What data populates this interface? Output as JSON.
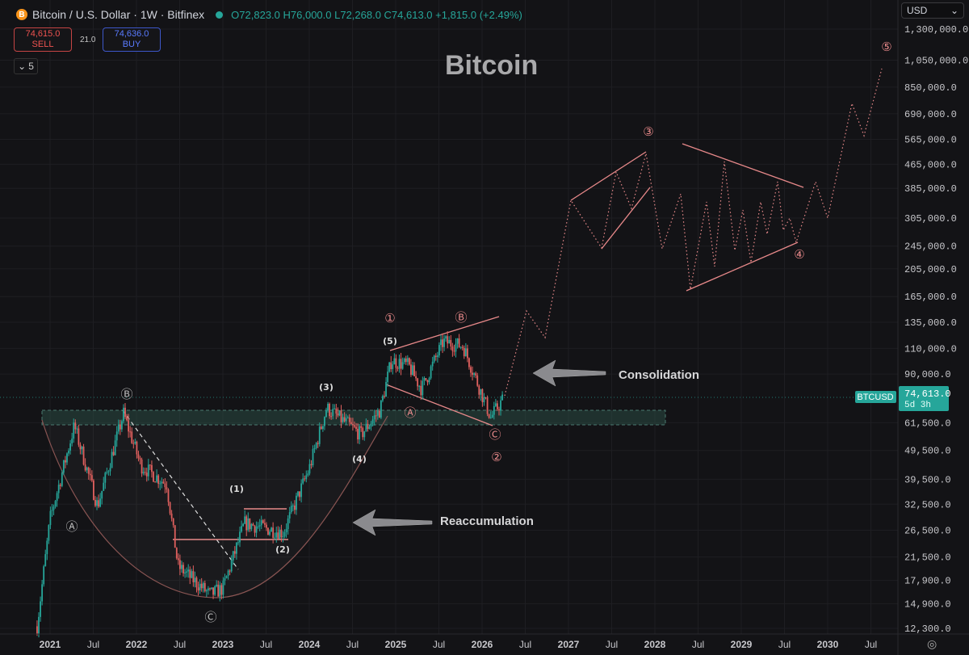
{
  "header": {
    "symbol": "Bitcoin / U.S. Dollar · 1W · Bitfinex",
    "coin_glyph": "B",
    "ohlc": "O72,823.0 H76,000.0 L72,268.0 C74,613.0 +1,815.0 (+2.49%)"
  },
  "trade": {
    "sell_price": "74,615.0",
    "sell_label": "SELL",
    "spread": "21.0",
    "buy_price": "74,636.0",
    "buy_label": "BUY"
  },
  "indicators_toggle": {
    "glyph": "⌄",
    "count": "5"
  },
  "currency_select": {
    "value": "USD",
    "glyph": "⌄"
  },
  "settings_glyph": "◎",
  "colors": {
    "up": "#26a69a",
    "down": "#e0605e",
    "annotation": "#e8898a",
    "bg": "#131316",
    "zone": "#2a4a44"
  },
  "chart_data": {
    "type": "candlestick",
    "title": "Bitcoin",
    "scale": "log",
    "ylim": [
      12000,
      1400000
    ],
    "y_ticks": [
      "1,300,000.0",
      "1,050,000.0",
      "850,000.0",
      "690,000.0",
      "565,000.0",
      "465,000.0",
      "385,000.0",
      "305,000.0",
      "245,000.0",
      "205,000.0",
      "165,000.0",
      "135,000.0",
      "110,000.0",
      "90,000.0",
      "61,500.0",
      "49,500.0",
      "39,500.0",
      "32,500.0",
      "26,500.0",
      "21,500.0",
      "17,900.0",
      "14,900.0",
      "12,300.0"
    ],
    "y_tick_values": [
      1300000,
      1050000,
      850000,
      690000,
      565000,
      465000,
      385000,
      305000,
      245000,
      205000,
      165000,
      135000,
      110000,
      90000,
      61500,
      49500,
      39500,
      32500,
      26500,
      21500,
      17900,
      14900,
      12300
    ],
    "x_ticks": [
      "2021",
      "Jul",
      "2022",
      "Jul",
      "2023",
      "Jul",
      "2024",
      "Jul",
      "2025",
      "Jul",
      "2026",
      "Jul",
      "2027",
      "Jul",
      "2028",
      "Jul",
      "2029",
      "Jul",
      "2030",
      "Jul"
    ],
    "x_tick_values": [
      2021,
      2021.5,
      2022,
      2022.5,
      2023,
      2023.5,
      2024,
      2024.5,
      2025,
      2025.5,
      2026,
      2026.5,
      2027,
      2027.5,
      2028,
      2028.5,
      2029,
      2029.5,
      2030,
      2030.5
    ],
    "price_path": [
      [
        2020.85,
        12500
      ],
      [
        2021.0,
        29000
      ],
      [
        2021.28,
        60000
      ],
      [
        2021.55,
        32000
      ],
      [
        2021.85,
        66000
      ],
      [
        2022.05,
        44000
      ],
      [
        2022.35,
        38000
      ],
      [
        2022.48,
        20000
      ],
      [
        2022.85,
        16000
      ],
      [
        2023.0,
        16800
      ],
      [
        2023.25,
        28000
      ],
      [
        2023.7,
        26000
      ],
      [
        2024.0,
        43000
      ],
      [
        2024.2,
        69000
      ],
      [
        2024.6,
        56000
      ],
      [
        2024.82,
        68000
      ],
      [
        2024.95,
        100000
      ],
      [
        2025.15,
        96000
      ],
      [
        2025.3,
        80000
      ],
      [
        2025.55,
        116000
      ],
      [
        2025.78,
        112000
      ],
      [
        2025.92,
        88000
      ],
      [
        2026.1,
        64000
      ],
      [
        2026.25,
        74613
      ]
    ],
    "last_price": {
      "symbol": "BTCUSD",
      "price": "74,613.0",
      "countdown": "5d 3h"
    },
    "annotations": {
      "wave_labels": [
        "Ⓑ",
        "Ⓐ",
        "Ⓒ",
        "(1)",
        "(2)",
        "(3)",
        "(4)",
        "(5)",
        "①",
        "Ⓑ",
        "Ⓐ",
        "Ⓒ",
        "②",
        "③",
        "④",
        "⑤"
      ],
      "notes": [
        "Consolidation",
        "Reaccumulation"
      ]
    }
  }
}
